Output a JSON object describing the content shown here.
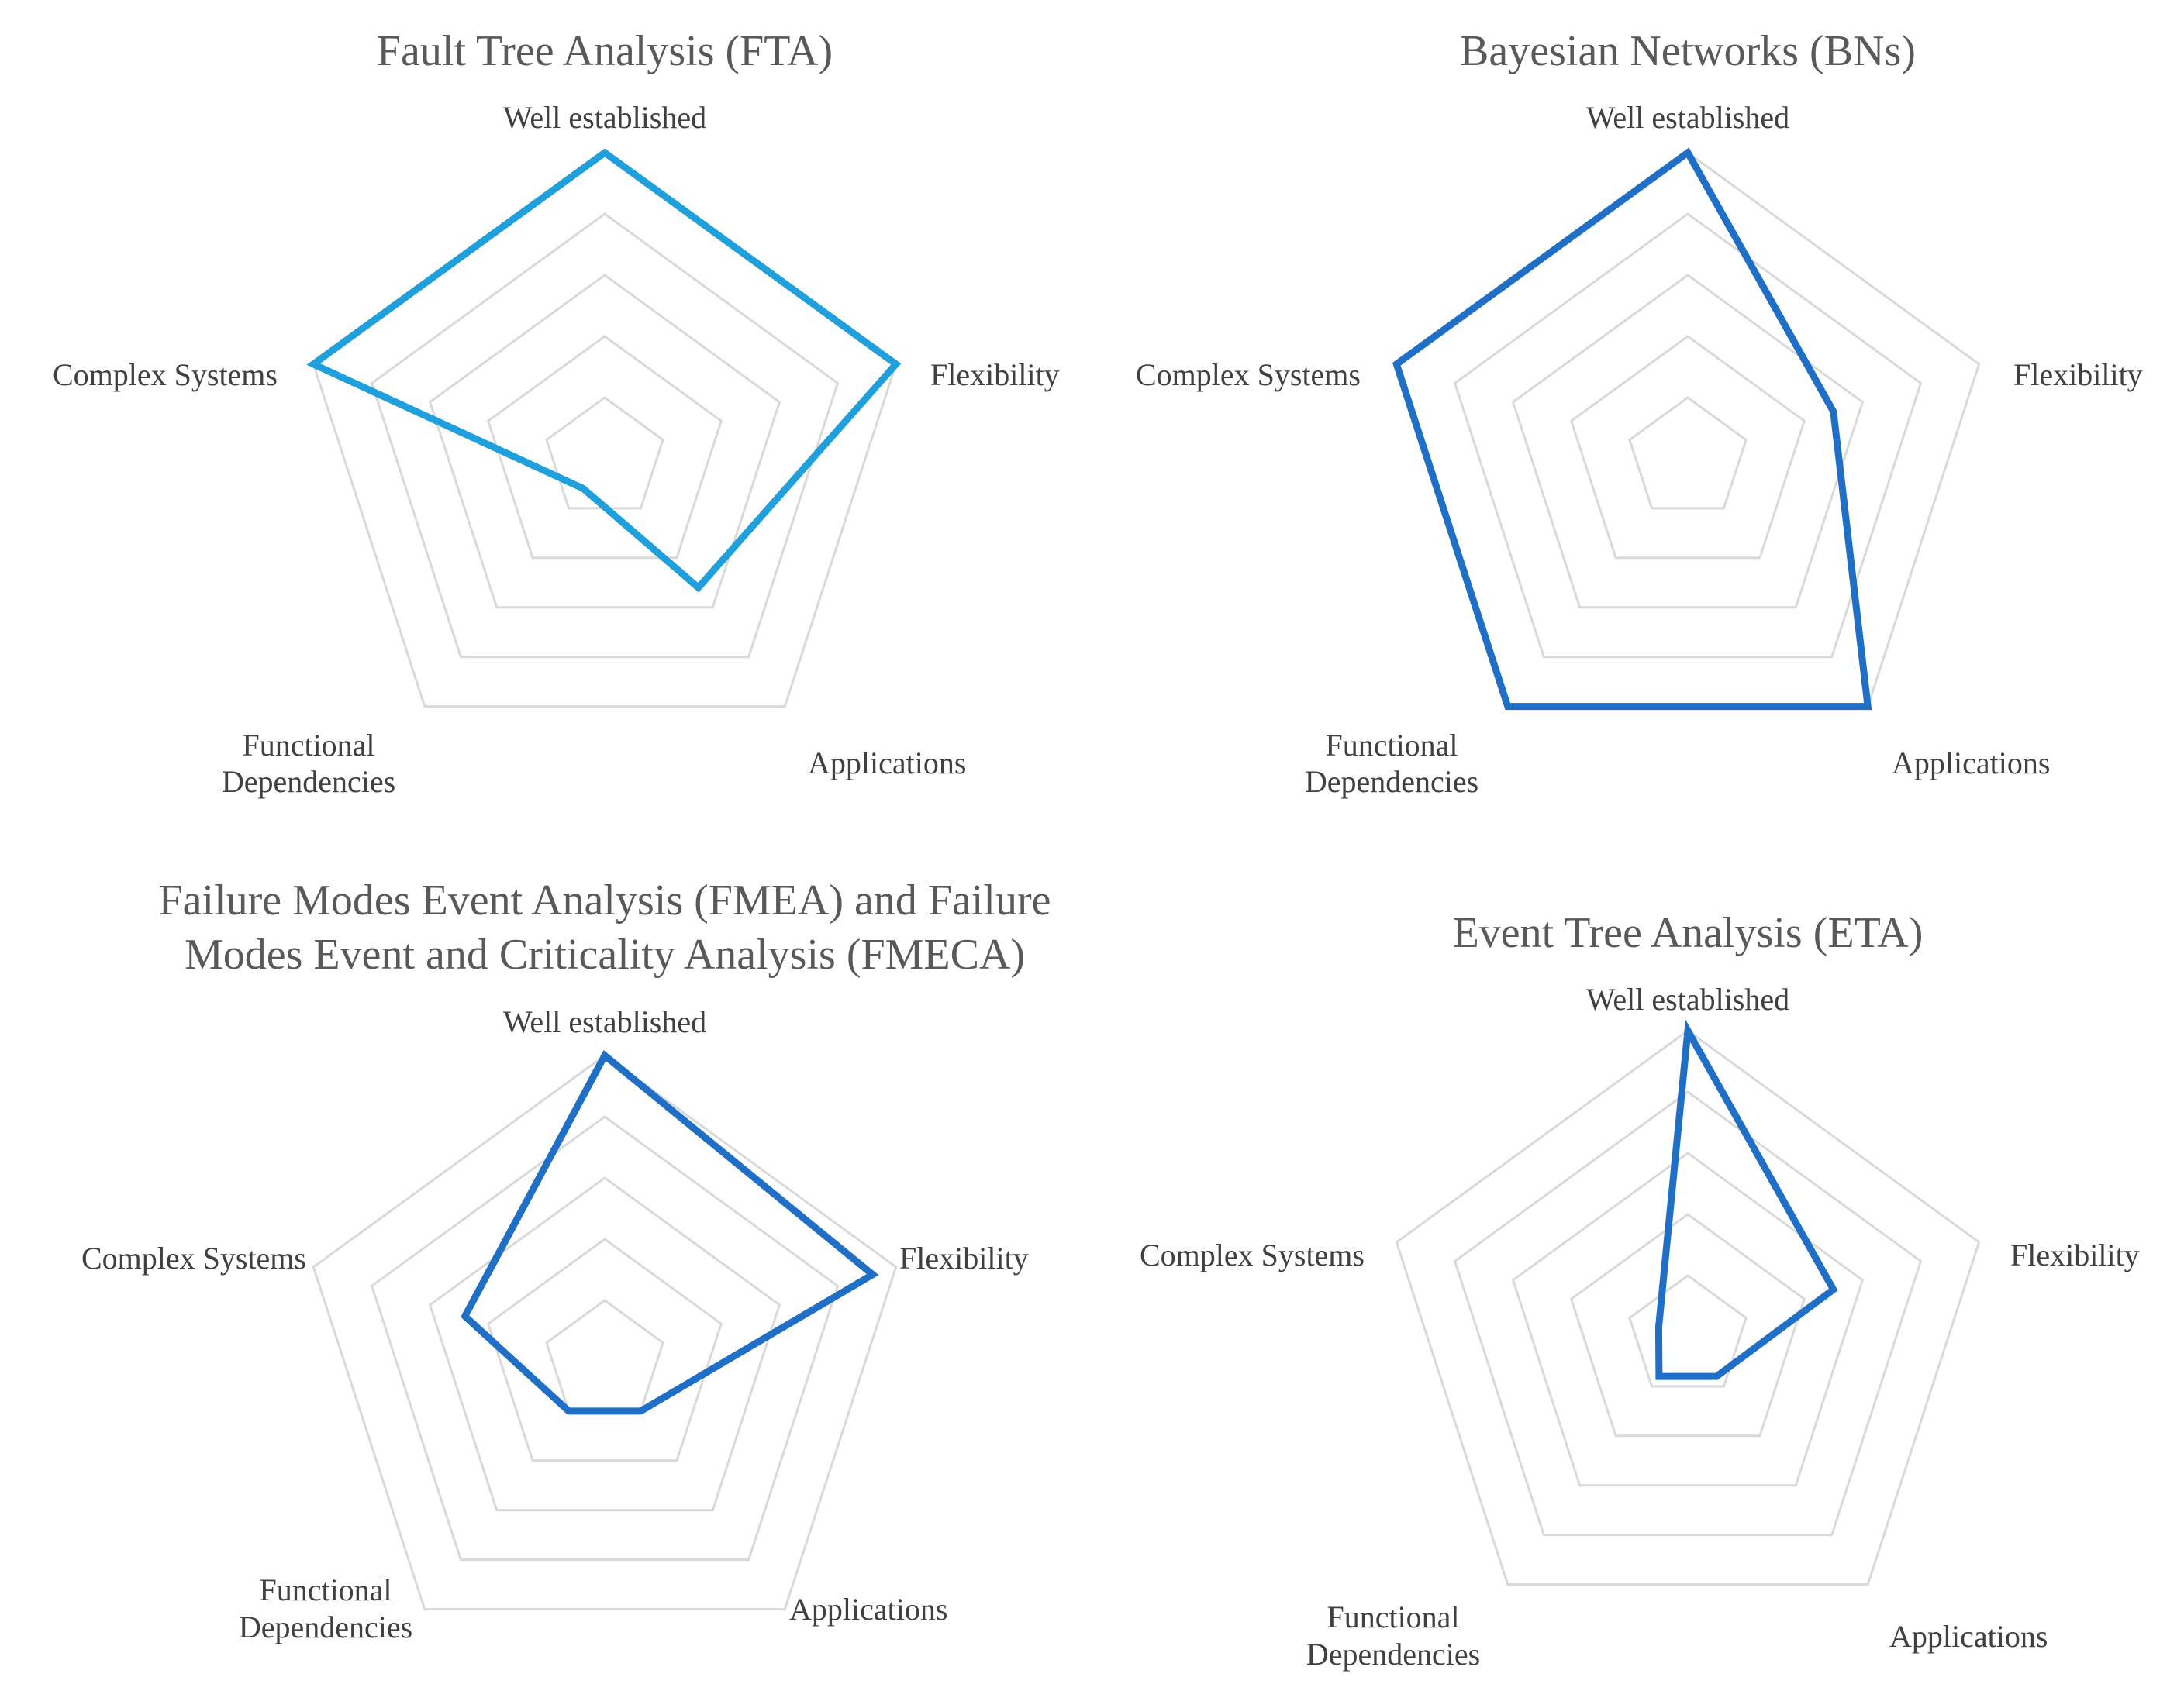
{
  "colors": {
    "fta": "#1f9fdc",
    "default": "#1f6fc6",
    "grid": "#d9d9d9"
  },
  "chart_data": [
    {
      "type": "radar",
      "title": [
        "Fault Tree Analysis (FTA)"
      ],
      "axes": [
        "Well established",
        "Flexibility",
        "Applications",
        "Functional Dependencies",
        "Complex Systems"
      ],
      "rings": 5,
      "rmax": 5,
      "series": [
        {
          "name": "FTA",
          "values": [
            5,
            5,
            2.6,
            0.6,
            5
          ]
        }
      ]
    },
    {
      "type": "radar",
      "title": [
        "Bayesian Networks (BNs)"
      ],
      "axes": [
        "Well established",
        "Flexibility",
        "Applications",
        "Functional Dependencies",
        "Complex Systems"
      ],
      "rings": 5,
      "rmax": 5,
      "series": [
        {
          "name": "BNs",
          "values": [
            5,
            2.5,
            5,
            5,
            5
          ]
        }
      ]
    },
    {
      "type": "radar",
      "title": [
        "Failure Modes Event Analysis (FMEA) and Failure",
        "Modes Event and Criticality Analysis (FMECA)"
      ],
      "axes": [
        "Well established",
        "Flexibility",
        "Applications",
        "Functional Dependencies",
        "Complex Systems"
      ],
      "rings": 5,
      "rmax": 5,
      "series": [
        {
          "name": "FMEA/FMECA",
          "values": [
            5,
            4.6,
            1,
            1,
            2.4
          ]
        }
      ]
    },
    {
      "type": "radar",
      "title": [
        "Event Tree Analysis (ETA)"
      ],
      "axes": [
        "Well established",
        "Flexibility",
        "Applications",
        "Functional Dependencies",
        "Complex Systems"
      ],
      "rings": 5,
      "rmax": 5,
      "series": [
        {
          "name": "ETA",
          "values": [
            5,
            2.5,
            0.8,
            0.8,
            0.5
          ]
        }
      ]
    }
  ]
}
